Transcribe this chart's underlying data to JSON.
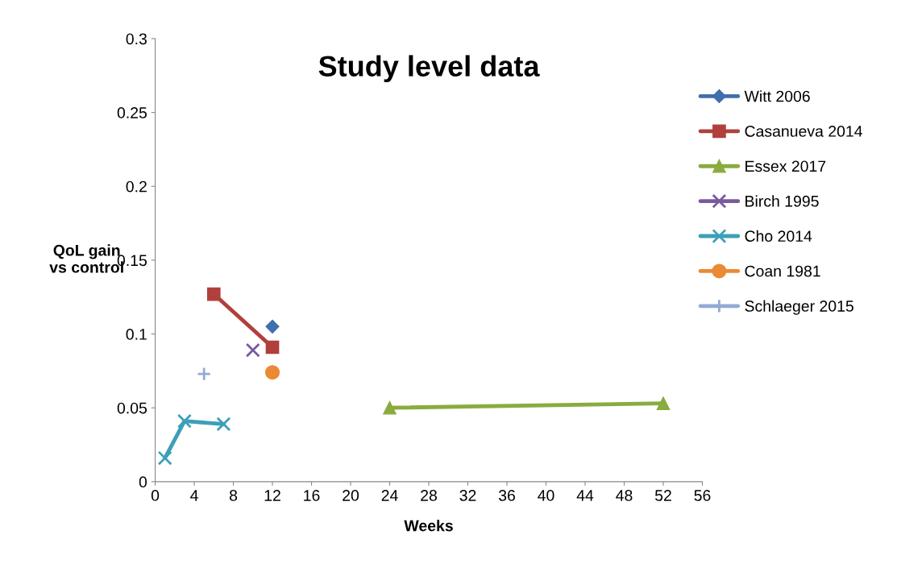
{
  "chart_data": {
    "type": "line",
    "title": "Study level data",
    "xlabel": "Weeks",
    "ylabel": "QoL gain\nvs control",
    "xlim": [
      0,
      56
    ],
    "xticks": [
      0,
      4,
      8,
      12,
      16,
      20,
      24,
      28,
      32,
      36,
      40,
      44,
      48,
      52,
      56
    ],
    "ylim": [
      0,
      0.3
    ],
    "yticks": [
      0,
      0.05,
      0.1,
      0.15,
      0.2,
      0.25,
      0.3
    ],
    "grid": false,
    "legend": "right",
    "series": [
      {
        "name": "Witt 2006",
        "color": "#3f6fad",
        "marker": "diamond",
        "x": [
          12
        ],
        "values": [
          0.105
        ]
      },
      {
        "name": "Casanueva 2014",
        "color": "#b13f3c",
        "marker": "square",
        "x": [
          6,
          12
        ],
        "values": [
          0.127,
          0.091
        ]
      },
      {
        "name": "Essex 2017",
        "color": "#8aab3f",
        "marker": "triangle",
        "x": [
          24,
          52
        ],
        "values": [
          0.05,
          0.053
        ]
      },
      {
        "name": "Birch 1995",
        "color": "#7a59a0",
        "marker": "cross",
        "x": [
          10
        ],
        "values": [
          0.089
        ]
      },
      {
        "name": "Cho 2014",
        "color": "#3d9fb8",
        "marker": "cross",
        "x": [
          1,
          3,
          7
        ],
        "values": [
          0.016,
          0.041,
          0.039
        ]
      },
      {
        "name": "Coan 1981",
        "color": "#ea8a35",
        "marker": "circle",
        "x": [
          12
        ],
        "values": [
          0.074
        ]
      },
      {
        "name": "Schlaeger 2015",
        "color": "#93aad4",
        "marker": "plus",
        "x": [
          5
        ],
        "values": [
          0.073
        ]
      }
    ]
  }
}
